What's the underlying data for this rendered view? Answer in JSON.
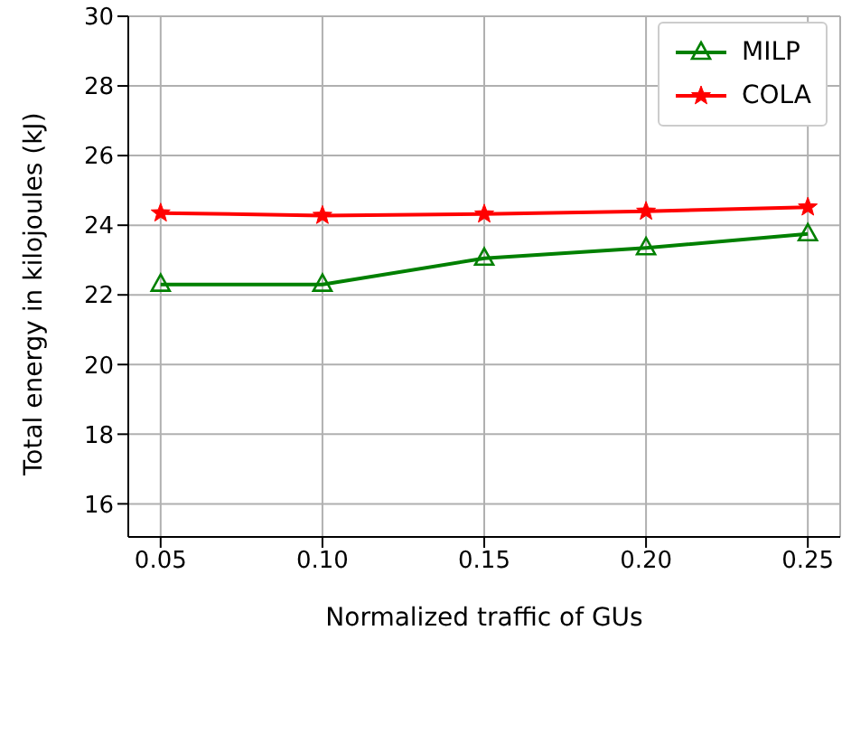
{
  "chart_data": {
    "type": "line",
    "xlabel": "Normalized traffic of GUs",
    "ylabel": "Total energy in kilojoules (kJ)",
    "x": [
      0.05,
      0.1,
      0.15,
      0.2,
      0.25
    ],
    "series": [
      {
        "name": "MILP",
        "color": "#008000",
        "marker": "triangle",
        "values": [
          22.3,
          22.3,
          23.05,
          23.35,
          23.75
        ]
      },
      {
        "name": "COLA",
        "color": "#ff0000",
        "marker": "star",
        "values": [
          24.35,
          24.28,
          24.32,
          24.4,
          24.52
        ]
      }
    ],
    "xlim": [
      0.04,
      0.26
    ],
    "xticks": [
      0.05,
      {
        "value": 0.1,
        "label": "0.10"
      },
      0.15,
      {
        "value": 0.2,
        "label": "0.20"
      },
      0.25
    ],
    "ylim": [
      15.05,
      30
    ],
    "yticks": [
      16,
      18,
      20,
      22,
      24,
      26,
      28,
      30
    ],
    "grid": true,
    "legend": "top right",
    "line_style": "solid"
  }
}
